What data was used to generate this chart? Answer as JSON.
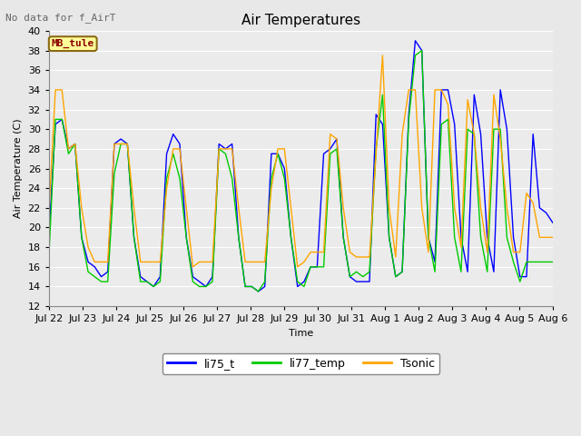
{
  "title": "Air Temperatures",
  "no_data_label": "No data for f_AirT",
  "location_label": "MB_tule",
  "xlabel": "Time",
  "ylabel": "Air Temperature (C)",
  "ylim": [
    12,
    40
  ],
  "yticks": [
    12,
    14,
    16,
    18,
    20,
    22,
    24,
    26,
    28,
    30,
    32,
    34,
    36,
    38,
    40
  ],
  "xtick_labels": [
    "Jul 22",
    "Jul 23",
    "Jul 24",
    "Jul 25",
    "Jul 26",
    "Jul 27",
    "Jul 28",
    "Jul 29",
    "Jul 30",
    "Jul 31",
    "Aug 1",
    "Aug 2",
    "Aug 3",
    "Aug 4",
    "Aug 5",
    "Aug 6"
  ],
  "line_colors": {
    "li75_t": "#0000FF",
    "li77_temp": "#00CC00",
    "Tsonic": "#FFA500"
  },
  "background_color": "#E8E8E8",
  "plot_bg_color": "#EBEBEB",
  "title_fontsize": 11,
  "label_fontsize": 8,
  "tick_fontsize": 8,
  "li75_t": [
    19.0,
    30.5,
    31.0,
    28.0,
    28.5,
    19.0,
    16.5,
    16.0,
    15.0,
    15.5,
    28.5,
    29.0,
    28.5,
    19.0,
    15.0,
    14.5,
    14.0,
    15.0,
    27.5,
    29.5,
    28.5,
    19.0,
    15.0,
    14.5,
    14.0,
    15.0,
    28.5,
    28.0,
    28.5,
    19.0,
    14.0,
    14.0,
    13.5,
    14.0,
    27.5,
    27.5,
    26.0,
    19.0,
    14.0,
    14.5,
    16.0,
    16.0,
    27.5,
    28.0,
    29.0,
    19.0,
    15.0,
    14.5,
    14.5,
    14.5,
    31.5,
    30.5,
    19.0,
    15.0,
    15.5,
    31.5,
    39.0,
    38.0,
    19.0,
    16.5,
    34.0,
    34.0,
    30.5,
    19.0,
    15.5,
    33.5,
    29.5,
    19.0,
    15.5,
    34.0,
    30.0,
    19.0,
    15.0,
    15.0,
    29.5,
    22.0,
    21.5,
    20.5
  ],
  "li77_temp": [
    17.0,
    31.0,
    31.0,
    27.5,
    28.5,
    19.0,
    15.5,
    15.0,
    14.5,
    14.5,
    25.5,
    28.5,
    28.5,
    19.0,
    14.5,
    14.5,
    14.0,
    14.5,
    25.0,
    27.5,
    25.0,
    19.0,
    14.5,
    14.0,
    14.0,
    14.5,
    28.0,
    27.5,
    25.0,
    19.0,
    14.0,
    14.0,
    13.5,
    14.5,
    25.0,
    27.5,
    25.0,
    19.0,
    14.5,
    14.0,
    16.0,
    16.0,
    16.0,
    27.5,
    28.0,
    19.0,
    15.0,
    15.5,
    15.0,
    15.5,
    28.0,
    33.5,
    19.0,
    15.0,
    15.5,
    31.0,
    37.5,
    38.0,
    19.0,
    15.5,
    30.5,
    31.0,
    19.0,
    15.5,
    30.0,
    29.5,
    19.0,
    15.5,
    30.0,
    30.0,
    19.0,
    16.5,
    14.5,
    16.5,
    16.5,
    16.5,
    16.5,
    16.5
  ],
  "Tsonic": [
    21.5,
    34.0,
    34.0,
    28.0,
    28.5,
    22.0,
    18.0,
    16.5,
    16.5,
    16.5,
    28.5,
    28.5,
    28.5,
    22.0,
    16.5,
    16.5,
    16.5,
    16.5,
    24.0,
    28.0,
    28.0,
    22.0,
    16.0,
    16.5,
    16.5,
    16.5,
    28.0,
    28.0,
    28.0,
    22.0,
    16.5,
    16.5,
    16.5,
    16.5,
    24.0,
    28.0,
    28.0,
    22.0,
    16.0,
    16.5,
    17.5,
    17.5,
    17.5,
    29.5,
    29.0,
    22.0,
    17.5,
    17.0,
    17.0,
    17.0,
    27.5,
    37.5,
    22.0,
    17.0,
    29.5,
    34.0,
    34.0,
    22.0,
    17.5,
    34.0,
    34.0,
    32.5,
    22.0,
    18.0,
    33.0,
    29.5,
    22.0,
    17.5,
    33.5,
    29.0,
    22.0,
    17.5,
    17.5,
    23.5,
    22.5,
    19.0,
    19.0,
    19.0
  ]
}
